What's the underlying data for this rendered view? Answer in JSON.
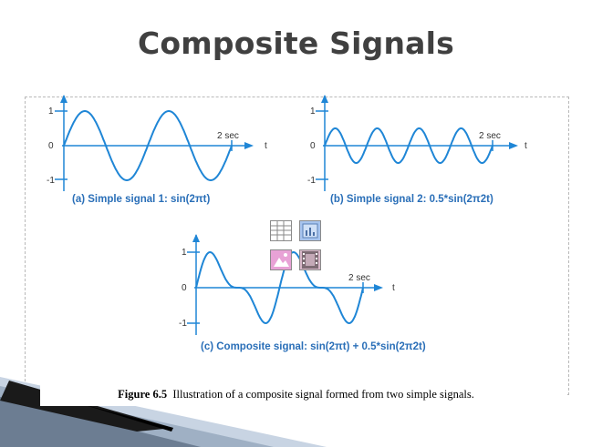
{
  "slide": {
    "title": "Composite Signals"
  },
  "figure": {
    "caption_label": "Figure 6.5",
    "caption_text": "Illustration of a composite signal formed from two simple signals.",
    "axis": {
      "t": "t",
      "two_sec": "2 sec",
      "y_pos": "1",
      "y_zero": "0",
      "y_neg": "-1"
    },
    "panels": [
      {
        "id": "a",
        "label": "(a) Simple signal 1:  sin(2πt)"
      },
      {
        "id": "b",
        "label": "(b) Simple signal 2:  0.5*sin(2π2t)"
      },
      {
        "id": "c",
        "label": "(c) Composite signal:  sin(2πt) + 0.5*sin(2π2t)"
      }
    ]
  },
  "colors": {
    "title": "#404040",
    "signal": "#1f86d6",
    "label": "#2a6fb8",
    "frame": "#b9b9b9"
  },
  "placeholder_icons": [
    "table-icon",
    "chart-icon",
    "picture-icon",
    "media-icon"
  ]
}
